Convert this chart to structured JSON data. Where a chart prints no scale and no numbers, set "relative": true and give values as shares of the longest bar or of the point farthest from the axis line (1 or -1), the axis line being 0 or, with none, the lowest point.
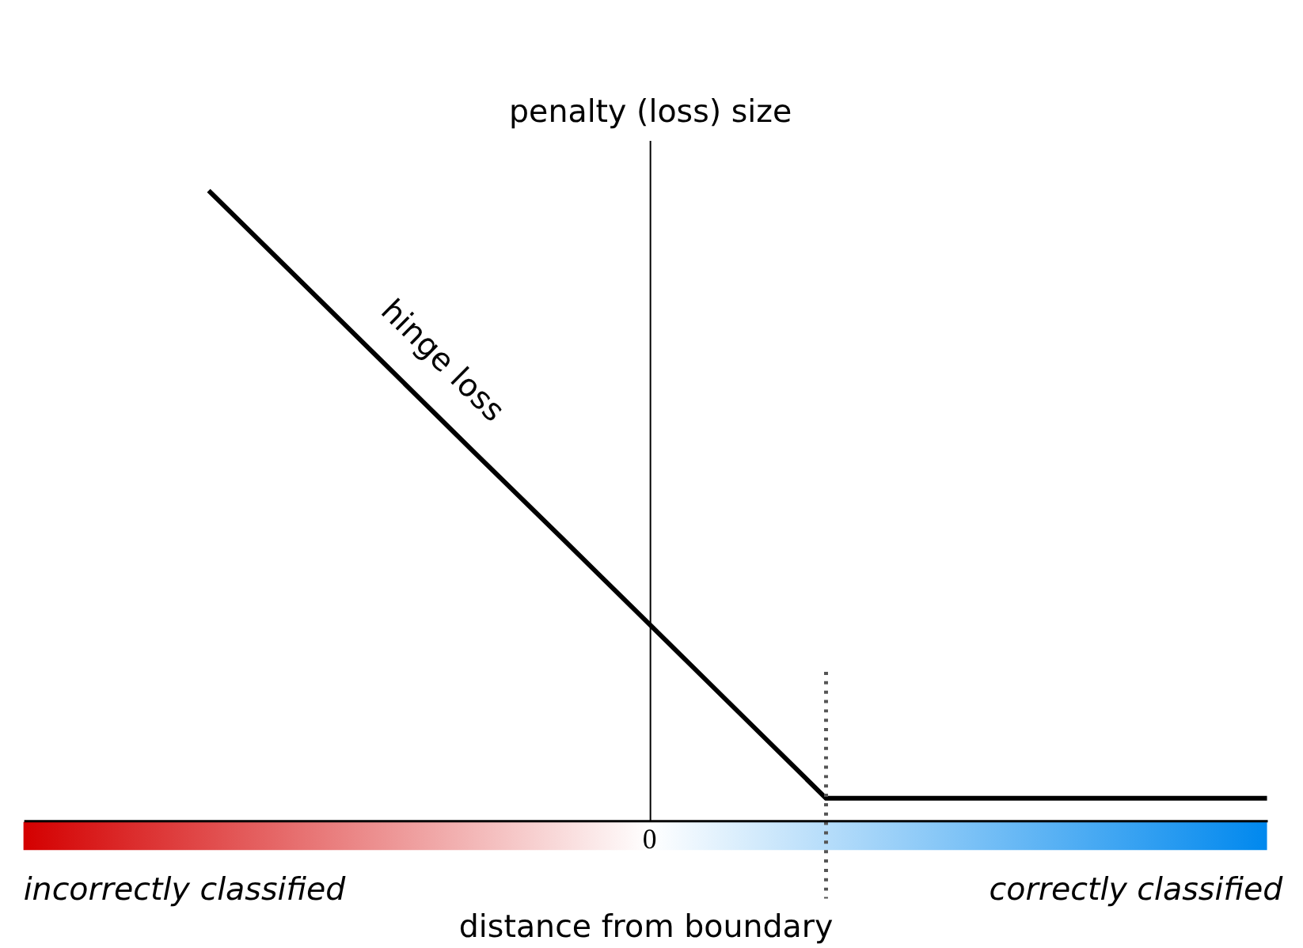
{
  "chart_data": {
    "type": "line",
    "relative": true,
    "categories": [
      null,
      null,
      null,
      null,
      null,
      null,
      null,
      null,
      null,
      null,
      null,
      null,
      null
    ],
    "values": [
      1,
      0.862,
      0.724,
      0.586,
      0.449,
      0.311,
      0.173,
      0.035,
      0.035,
      0.035,
      0.035,
      0.035,
      0.035
    ],
    "color": "#000000",
    "xlabel": "distance from boundary",
    "ylabel": "penalty (loss) size",
    "ref_lines": [
      {
        "axis": "x",
        "line_style": "dotted",
        "color": "#555555"
      }
    ],
    "annotations": [
      "hinge loss",
      "incorrectly classified",
      "correctly classified",
      "0"
    ],
    "marker": "none",
    "line_style": "solid"
  }
}
